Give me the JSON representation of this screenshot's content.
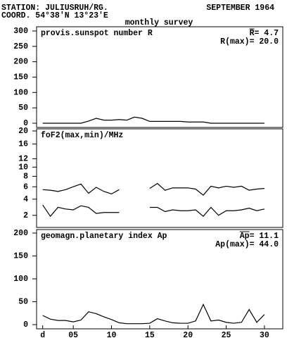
{
  "header": {
    "station": "STATION: JULIUSRUH/RG.",
    "date": "SEPTEMBER 1964",
    "coord": "COORD. 54°38'N 13°23'E",
    "subtitle": "monthly survey"
  },
  "chart_data": [
    {
      "type": "line",
      "title": "provis.sunspot number R",
      "annotations": [
        {
          "symbol": "R",
          "text": "=  4.7"
        },
        {
          "text": "R(max)= 20.0"
        }
      ],
      "x": [
        1,
        2,
        3,
        4,
        5,
        6,
        7,
        8,
        9,
        10,
        11,
        12,
        13,
        14,
        15,
        16,
        17,
        18,
        19,
        20,
        21,
        22,
        23,
        24,
        25,
        26,
        27,
        28,
        29,
        30
      ],
      "series": [
        {
          "color": "#000000",
          "values": [
            0,
            0,
            0,
            0,
            0,
            0,
            7,
            16,
            10,
            10,
            12,
            10,
            20,
            16,
            6,
            6,
            6,
            6,
            6,
            4,
            4,
            4,
            0,
            0,
            0,
            0,
            0,
            0,
            0,
            0
          ]
        }
      ],
      "xlim": [
        0.2,
        32.4
      ],
      "ylim": [
        0,
        300
      ],
      "yticks": [
        0,
        50,
        100,
        150,
        200,
        250,
        300
      ]
    },
    {
      "type": "line",
      "title": "foF2(max,min)/MHz",
      "scale": "sqrt",
      "x": [
        1,
        2,
        3,
        4,
        5,
        6,
        7,
        8,
        9,
        10,
        11,
        12,
        13,
        14,
        15,
        16,
        17,
        18,
        19,
        20,
        21,
        22,
        23,
        24,
        25,
        26,
        27,
        28,
        29,
        30
      ],
      "series": [
        {
          "color": "#000000",
          "values": [
            5.5,
            5.4,
            5.2,
            5.5,
            6,
            6.5,
            4.9,
            5.9,
            5.2,
            4.8,
            5.5,
            null,
            null,
            null,
            5.7,
            6.6,
            5.4,
            5.8,
            5.8,
            5.8,
            5.6,
            4.6,
            6.1,
            5.8,
            6.1,
            5.9,
            6.1,
            5.4,
            5.6,
            5.7
          ]
        },
        {
          "color": "#000000",
          "values": [
            3.2,
            1.9,
            2.9,
            2.7,
            2.6,
            3.1,
            2.9,
            2.2,
            2.3,
            2.3,
            2.3,
            null,
            null,
            null,
            2.9,
            2.9,
            2.4,
            2.6,
            2.5,
            2.5,
            2.6,
            1.9,
            2.9,
            2.0,
            2.5,
            2.5,
            2.6,
            2.8,
            2.5,
            2.7
          ]
        }
      ],
      "xlim": [
        0.2,
        32.4
      ],
      "ylim": [
        1,
        20
      ],
      "yticks": [
        2,
        4,
        6,
        8,
        10,
        12,
        16,
        20
      ]
    },
    {
      "type": "line",
      "title": "geomagn.planetary index Ap",
      "annotations": [
        {
          "symbol": "Ap",
          "text": "= 11.1"
        },
        {
          "text": "Ap(max)= 44.0"
        }
      ],
      "x": [
        1,
        2,
        3,
        4,
        5,
        6,
        7,
        8,
        9,
        10,
        11,
        12,
        13,
        14,
        15,
        16,
        17,
        18,
        19,
        20,
        21,
        22,
        23,
        24,
        25,
        26,
        27,
        28,
        29,
        30
      ],
      "series": [
        {
          "color": "#000000",
          "values": [
            20,
            12,
            9,
            9,
            6,
            10,
            28,
            24,
            17,
            11,
            4,
            2,
            2,
            2,
            3,
            13,
            8,
            4,
            3,
            3,
            8,
            44,
            8,
            10,
            5,
            3,
            5,
            33,
            5,
            22
          ]
        }
      ],
      "xlim": [
        0.2,
        32.4
      ],
      "ylim": [
        0,
        200
      ],
      "yticks": [
        0,
        50,
        100,
        150,
        200
      ],
      "xticks": [
        {
          "value": 1,
          "label": "d"
        },
        {
          "value": 5,
          "label": "05"
        },
        10,
        15,
        20,
        25,
        30
      ]
    }
  ]
}
